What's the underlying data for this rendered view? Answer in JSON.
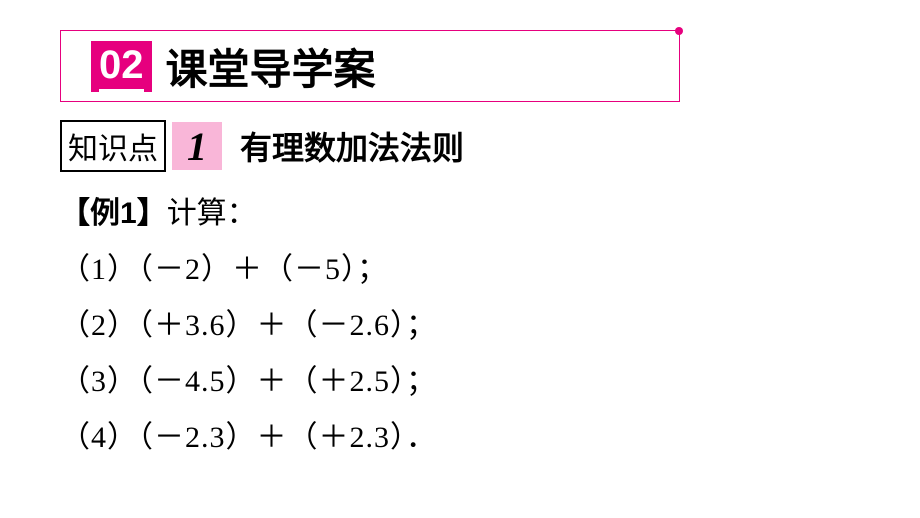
{
  "header": {
    "number": "02",
    "title": "课堂导学案"
  },
  "knowledge_point": {
    "label": "知识点",
    "number": "1",
    "title": "有理数加法法则"
  },
  "example": {
    "label_open": "【例",
    "label_num": "1",
    "label_close": "】",
    "instruction": "计算：",
    "items": [
      "（1）（－2）＋（－5）；",
      "（2）（＋3.6）＋（－2.6）；",
      "（3）（－4.5）＋（＋2.5）；",
      "（4）（－2.3）＋（＋2.3）．"
    ]
  },
  "colors": {
    "magenta": "#e6007e",
    "pink_bg": "#f9b6d8",
    "text": "#000000",
    "bg": "#ffffff"
  }
}
